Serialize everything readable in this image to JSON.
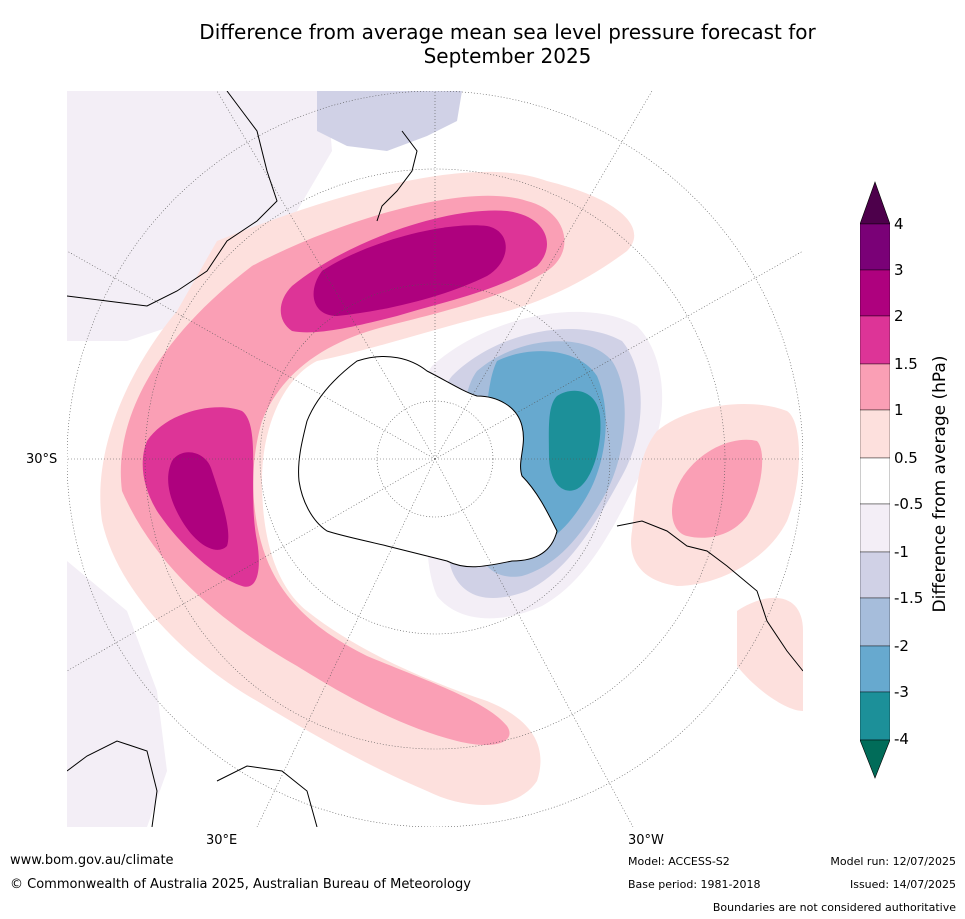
{
  "title_line1": "Difference from average mean sea level pressure forecast for",
  "title_line2": "September 2025",
  "map_labels": {
    "lat_30s": "30°S",
    "lon_30e": "30°E",
    "lon_30w": "30°W"
  },
  "colorbar": {
    "title": "Difference from average (hPa)",
    "ticks": [
      "4",
      "3",
      "2",
      "1.5",
      "1",
      "0.5",
      "-0.5",
      "-1",
      "-1.5",
      "-2",
      "-3",
      "-4"
    ],
    "colors": {
      "3_to_4": "#7a0177",
      "2_to_3": "#ae017e",
      "1.5_to_2": "#dd3497",
      "1_to_1.5": "#fa9fb5",
      "0.5_to_1": "#fde0dd",
      "-0.5_to_0.5": "#ffffff",
      "-1_to_-0.5": "#f3eef6",
      "-1.5_to_-1": "#d0d1e6",
      "-2_to_-1.5": "#a6bddb",
      "-3_to_-2": "#67a9cf",
      "-4_to_-3": "#1c9099",
      "above_4": "#4d004b",
      "below_-4": "#016c59"
    }
  },
  "footer": {
    "url": "www.bom.gov.au/climate",
    "copyright": "© Commonwealth of Australia 2025, Australian Bureau of Meteorology",
    "model": "Model: ACCESS-S2",
    "base_period": "Base period: 1981-2018",
    "model_run": "Model run: 12/07/2025",
    "issued": "Issued: 14/07/2025",
    "disclaimer": "Boundaries are not considered authoritative"
  }
}
